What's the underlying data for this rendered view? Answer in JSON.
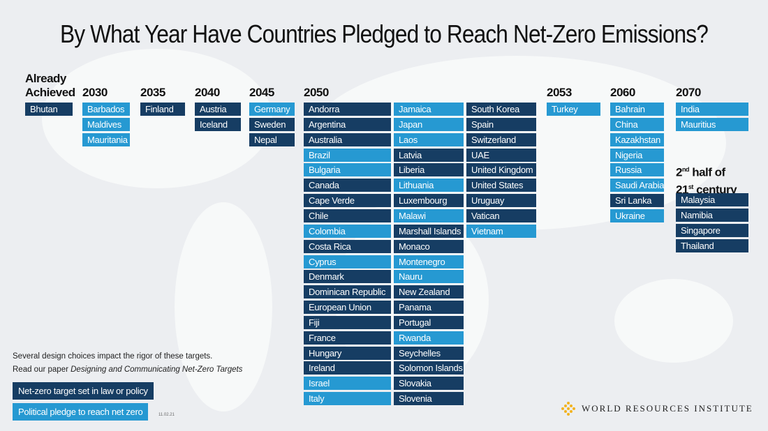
{
  "title": "By What Year Have Countries Pledged to Reach Net-Zero Emissions?",
  "colors": {
    "law": "#163d63",
    "pledge": "#2699d2"
  },
  "columns": [
    {
      "heading": "Already Achieved",
      "countries": [
        {
          "name": "Bhutan",
          "type": "law"
        }
      ]
    },
    {
      "heading": "2030",
      "countries": [
        {
          "name": "Barbados",
          "type": "pledge"
        },
        {
          "name": "Maldives",
          "type": "pledge"
        },
        {
          "name": "Mauritania",
          "type": "pledge"
        }
      ]
    },
    {
      "heading": "2035",
      "countries": [
        {
          "name": "Finland",
          "type": "law"
        }
      ]
    },
    {
      "heading": "2040",
      "countries": [
        {
          "name": "Austria",
          "type": "law"
        },
        {
          "name": "Iceland",
          "type": "law"
        }
      ]
    },
    {
      "heading": "2045",
      "countries": [
        {
          "name": "Germany",
          "type": "pledge"
        },
        {
          "name": "Sweden",
          "type": "law"
        },
        {
          "name": "Nepal",
          "type": "law"
        }
      ]
    },
    {
      "heading": "2050",
      "countries": [
        {
          "name": "Andorra",
          "type": "law"
        },
        {
          "name": "Argentina",
          "type": "law"
        },
        {
          "name": "Australia",
          "type": "law"
        },
        {
          "name": "Brazil",
          "type": "pledge"
        },
        {
          "name": "Bulgaria",
          "type": "pledge"
        },
        {
          "name": "Canada",
          "type": "law"
        },
        {
          "name": "Cape Verde",
          "type": "law"
        },
        {
          "name": "Chile",
          "type": "law"
        },
        {
          "name": "Colombia",
          "type": "pledge"
        },
        {
          "name": "Costa Rica",
          "type": "law"
        },
        {
          "name": "Cyprus",
          "type": "pledge"
        },
        {
          "name": "Denmark",
          "type": "law"
        },
        {
          "name": "Dominican Republic",
          "type": "law"
        },
        {
          "name": "European Union",
          "type": "law"
        },
        {
          "name": "Fiji",
          "type": "law"
        },
        {
          "name": "France",
          "type": "law"
        },
        {
          "name": "Hungary",
          "type": "law"
        },
        {
          "name": "Ireland",
          "type": "law"
        },
        {
          "name": "Israel",
          "type": "pledge"
        },
        {
          "name": "Italy",
          "type": "pledge"
        },
        {
          "name": "Jamaica",
          "type": "pledge"
        },
        {
          "name": "Japan",
          "type": "pledge"
        },
        {
          "name": "Laos",
          "type": "pledge"
        },
        {
          "name": "Latvia",
          "type": "law"
        },
        {
          "name": "Liberia",
          "type": "law"
        },
        {
          "name": "Lithuania",
          "type": "pledge"
        },
        {
          "name": "Luxembourg",
          "type": "law"
        },
        {
          "name": "Malawi",
          "type": "pledge"
        },
        {
          "name": "Marshall Islands",
          "type": "law"
        },
        {
          "name": "Monaco",
          "type": "law"
        },
        {
          "name": "Montenegro",
          "type": "pledge"
        },
        {
          "name": "Nauru",
          "type": "pledge"
        },
        {
          "name": "New Zealand",
          "type": "law"
        },
        {
          "name": "Panama",
          "type": "law"
        },
        {
          "name": "Portugal",
          "type": "law"
        },
        {
          "name": "Rwanda",
          "type": "pledge"
        },
        {
          "name": "Seychelles",
          "type": "law"
        },
        {
          "name": "Solomon Islands",
          "type": "law"
        },
        {
          "name": "Slovakia",
          "type": "law"
        },
        {
          "name": "Slovenia",
          "type": "law"
        },
        {
          "name": "South Korea",
          "type": "law"
        },
        {
          "name": "Spain",
          "type": "law"
        },
        {
          "name": "Switzerland",
          "type": "law"
        },
        {
          "name": "UAE",
          "type": "law"
        },
        {
          "name": "United Kingdom",
          "type": "law"
        },
        {
          "name": "United States",
          "type": "law"
        },
        {
          "name": "Uruguay",
          "type": "law"
        },
        {
          "name": "Vatican",
          "type": "law"
        },
        {
          "name": "Vietnam",
          "type": "pledge"
        }
      ]
    },
    {
      "heading": "2053",
      "countries": [
        {
          "name": "Turkey",
          "type": "pledge"
        }
      ]
    },
    {
      "heading": "2060",
      "countries": [
        {
          "name": "Bahrain",
          "type": "pledge"
        },
        {
          "name": "China",
          "type": "pledge"
        },
        {
          "name": "Kazakhstan",
          "type": "pledge"
        },
        {
          "name": "Nigeria",
          "type": "pledge"
        },
        {
          "name": "Russia",
          "type": "pledge"
        },
        {
          "name": "Saudi Arabia",
          "type": "pledge"
        },
        {
          "name": "Sri Lanka",
          "type": "law"
        },
        {
          "name": "Ukraine",
          "type": "pledge"
        }
      ]
    },
    {
      "heading": "2070",
      "countries": [
        {
          "name": "India",
          "type": "pledge"
        },
        {
          "name": "Mauritius",
          "type": "pledge"
        }
      ]
    },
    {
      "heading": "2nd half of 21st century",
      "countries": [
        {
          "name": "Malaysia",
          "type": "law"
        },
        {
          "name": "Namibia",
          "type": "law"
        },
        {
          "name": "Singapore",
          "type": "law"
        },
        {
          "name": "Thailand",
          "type": "law"
        }
      ]
    }
  ],
  "note": {
    "line1": "Several design choices impact the rigor of these targets.",
    "line2_prefix": "Read our paper ",
    "line2_title": "Designing and Communicating Net-Zero Targets"
  },
  "legend": {
    "law": "Net-zero target set in law or policy",
    "pledge": "Political pledge to reach net zero"
  },
  "date": "11.02.21",
  "logo": {
    "text": "WORLD RESOURCES INSTITUTE",
    "icon": "wri-logo-icon"
  }
}
